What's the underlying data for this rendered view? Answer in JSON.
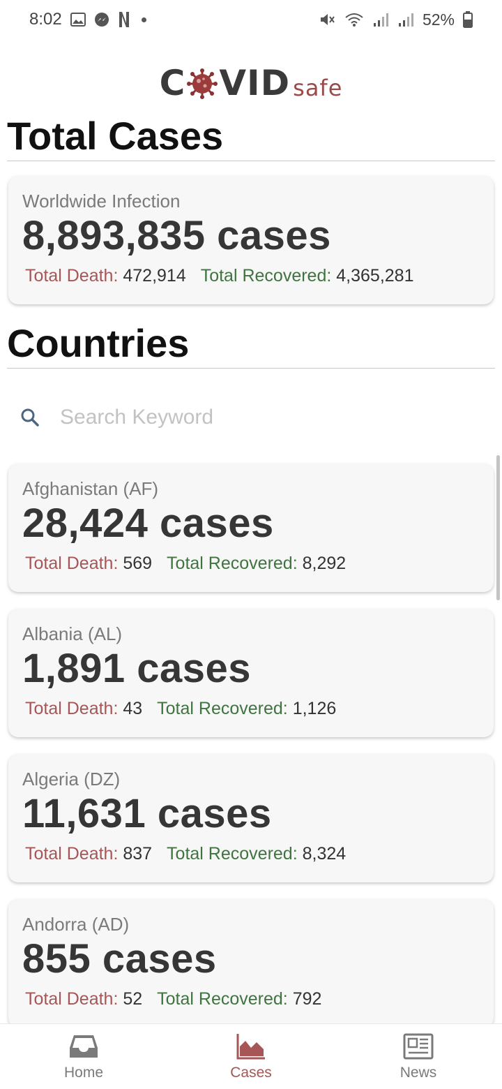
{
  "status_bar": {
    "time": "8:02",
    "battery": "52%",
    "icons": [
      "gallery-icon",
      "messenger-icon",
      "netflix-icon",
      "dot-icon",
      "mute-icon",
      "wifi-icon",
      "signal-icon",
      "signal-icon",
      "battery-icon"
    ]
  },
  "logo": {
    "part1": "C",
    "part2": "VID",
    "suffix": "safe"
  },
  "total_section": {
    "title": "Total Cases",
    "card": {
      "name": "Worldwide Infection",
      "cases": "8,893,835 cases",
      "death_label": "Total Death:",
      "death_value": "472,914",
      "recovered_label": "Total Recovered:",
      "recovered_value": "4,365,281"
    }
  },
  "countries_section": {
    "title": "Countries",
    "search": {
      "placeholder": "Search Keyword",
      "value": ""
    },
    "items": [
      {
        "name": "Afghanistan (AF)",
        "cases": "28,424 cases",
        "death_label": "Total Death:",
        "death_value": "569",
        "recovered_label": "Total Recovered:",
        "recovered_value": "8,292"
      },
      {
        "name": "Albania (AL)",
        "cases": "1,891 cases",
        "death_label": "Total Death:",
        "death_value": "43",
        "recovered_label": "Total Recovered:",
        "recovered_value": "1,126"
      },
      {
        "name": "Algeria (DZ)",
        "cases": "11,631 cases",
        "death_label": "Total Death:",
        "death_value": "837",
        "recovered_label": "Total Recovered:",
        "recovered_value": "8,324"
      },
      {
        "name": "Andorra (AD)",
        "cases": "855 cases",
        "death_label": "Total Death:",
        "death_value": "52",
        "recovered_label": "Total Recovered:",
        "recovered_value": "792"
      }
    ]
  },
  "bottom_nav": {
    "items": [
      {
        "label": "Home",
        "icon": "inbox-icon",
        "active": false
      },
      {
        "label": "Cases",
        "icon": "area-chart-icon",
        "active": true
      },
      {
        "label": "News",
        "icon": "newspaper-icon",
        "active": false
      }
    ]
  },
  "colors": {
    "accent": "#a65656",
    "death": "#a55656",
    "recovered": "#3f7440",
    "card_bg": "#f7f7f7"
  }
}
